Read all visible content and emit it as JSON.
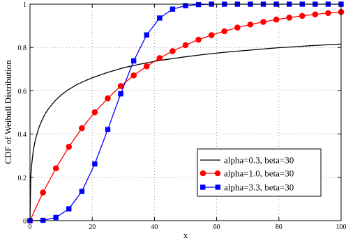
{
  "chart_data": {
    "type": "line",
    "xlabel": "x",
    "ylabel": "CDF of Weibull Distribution",
    "xlim": [
      0,
      100
    ],
    "ylim": [
      0,
      1
    ],
    "xticks": [
      0,
      20,
      40,
      60,
      80,
      100
    ],
    "yticks": [
      0,
      0.2,
      0.4,
      0.6,
      0.8,
      1
    ],
    "xtick_labels": [
      "0",
      "20",
      "40",
      "60",
      "80",
      "100"
    ],
    "ytick_labels": [
      "0",
      "0.2",
      "0.4",
      "0.6",
      "0.8",
      "1"
    ],
    "grid": true,
    "legend_position": "bottom-right",
    "series": [
      {
        "name": "alpha=0.3, beta=30",
        "color": "#000000",
        "marker": "none",
        "alpha": 0.3,
        "beta": 30,
        "x": [
          0,
          0.25,
          0.5,
          1,
          1.5,
          2,
          3,
          4,
          5,
          6,
          8,
          10,
          12,
          15,
          18,
          20,
          25,
          30,
          35,
          40,
          45,
          50,
          55,
          60,
          65,
          70,
          75,
          80,
          85,
          90,
          95,
          100
        ],
        "values": [
          0,
          0.204,
          0.253,
          0.316,
          0.358,
          0.389,
          0.435,
          0.469,
          0.496,
          0.518,
          0.553,
          0.58,
          0.602,
          0.628,
          0.648,
          0.66,
          0.685,
          0.706,
          0.722,
          0.736,
          0.747,
          0.757,
          0.766,
          0.774,
          0.781,
          0.787,
          0.793,
          0.799,
          0.803,
          0.808,
          0.812,
          0.816
        ]
      },
      {
        "name": "alpha=1.0, beta=30",
        "color": "#ff0000",
        "marker": "circle",
        "alpha": 1.0,
        "beta": 30,
        "x": [
          0,
          4.167,
          8.333,
          12.5,
          16.667,
          20.833,
          25,
          29.167,
          33.333,
          37.5,
          41.667,
          45.833,
          50,
          54.167,
          58.333,
          62.5,
          66.667,
          70.833,
          75,
          79.167,
          83.333,
          87.5,
          91.667,
          95.833,
          100
        ],
        "values": [
          0,
          0.13,
          0.242,
          0.341,
          0.427,
          0.501,
          0.565,
          0.622,
          0.671,
          0.713,
          0.751,
          0.783,
          0.811,
          0.836,
          0.857,
          0.875,
          0.892,
          0.906,
          0.918,
          0.929,
          0.938,
          0.946,
          0.953,
          0.959,
          0.964
        ]
      },
      {
        "name": "alpha=3.3, beta=30",
        "color": "#0000ff",
        "marker": "square",
        "alpha": 3.3,
        "beta": 30,
        "x": [
          0,
          4.167,
          8.333,
          12.5,
          16.667,
          20.833,
          25,
          29.167,
          33.333,
          37.5,
          41.667,
          45.833,
          50,
          54.167,
          58.333,
          62.5,
          66.667,
          70.833,
          75,
          79.167,
          83.333,
          87.5,
          91.667,
          95.833,
          100
        ],
        "values": [
          0,
          0.0015,
          0.0145,
          0.0545,
          0.135,
          0.262,
          0.421,
          0.586,
          0.738,
          0.858,
          0.936,
          0.977,
          0.993,
          0.998,
          1.0,
          1.0,
          1.0,
          1.0,
          1.0,
          1.0,
          1.0,
          1.0,
          1.0,
          1.0,
          1.0
        ]
      }
    ]
  }
}
